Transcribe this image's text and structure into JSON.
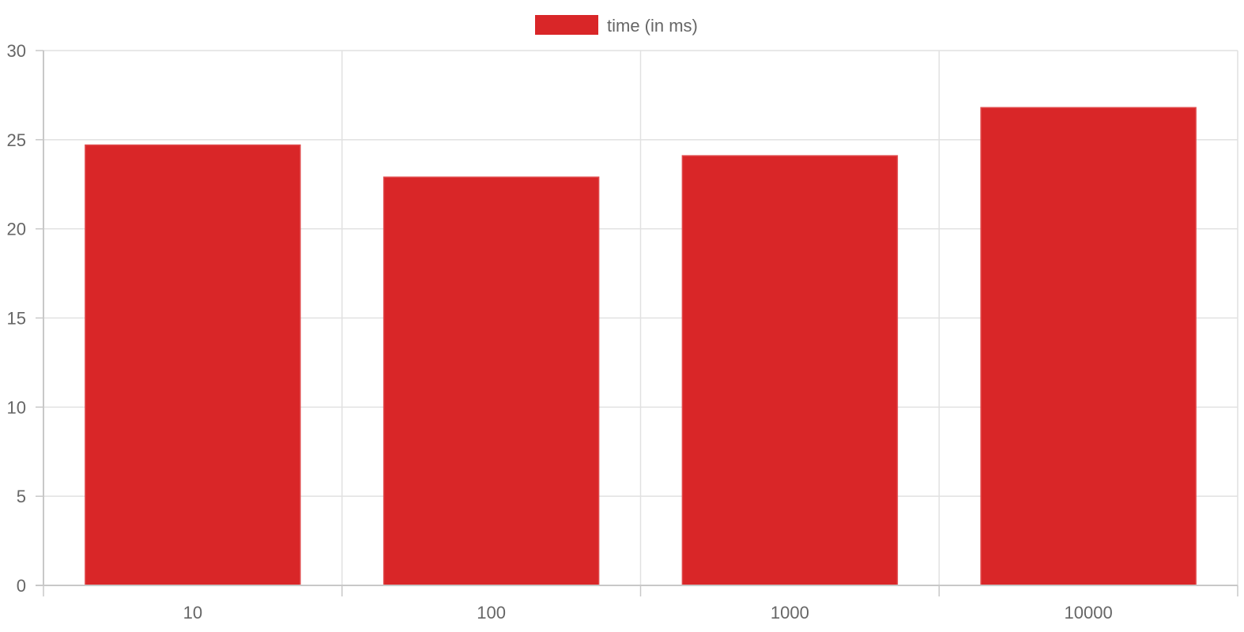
{
  "chart_data": {
    "type": "bar",
    "categories": [
      "10",
      "100",
      "1000",
      "10000"
    ],
    "series": [
      {
        "name": "time (in ms)",
        "values": [
          24.7,
          22.9,
          24.1,
          26.8
        ],
        "color": "#d92628"
      }
    ],
    "ylim": [
      0,
      30
    ],
    "yticks": [
      "0",
      "5",
      "10",
      "15",
      "20",
      "25",
      "30"
    ],
    "grid": true,
    "legend_position": "top-center"
  }
}
